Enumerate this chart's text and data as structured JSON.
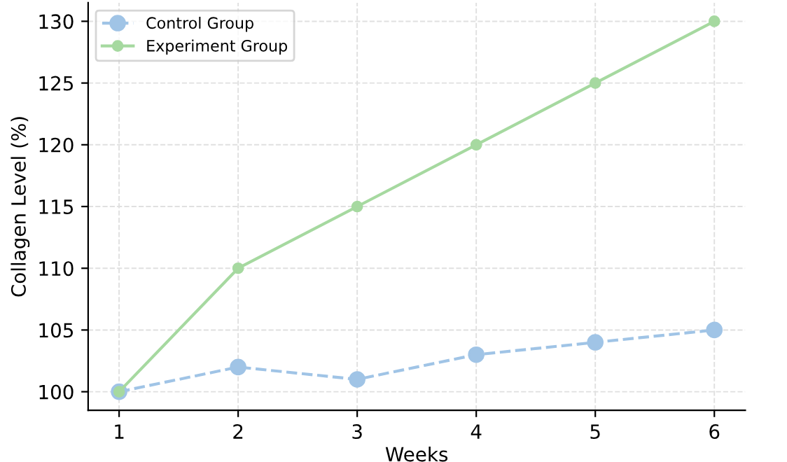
{
  "chart_data": {
    "type": "line",
    "xlabel": "Weeks",
    "ylabel": "Collagen Level (%)",
    "x": [
      1,
      2,
      3,
      4,
      5,
      6
    ],
    "series": [
      {
        "name": "Control Group",
        "color": "#a0c4e6",
        "values": [
          100,
          102,
          101,
          103,
          104,
          105
        ],
        "line_style": "dashed"
      },
      {
        "name": "Experiment Group",
        "color": "#a6d9a0",
        "values": [
          100,
          110,
          115,
          120,
          125,
          130
        ],
        "line_style": "solid"
      }
    ],
    "xlim": [
      0.74,
      6.26
    ],
    "ylim": [
      98.5,
      131.5
    ],
    "xticks": [
      1,
      2,
      3,
      4,
      5,
      6
    ],
    "yticks": [
      100,
      105,
      110,
      115,
      120,
      125,
      130
    ],
    "grid": true,
    "legend": "top left",
    "marker": "circle"
  }
}
